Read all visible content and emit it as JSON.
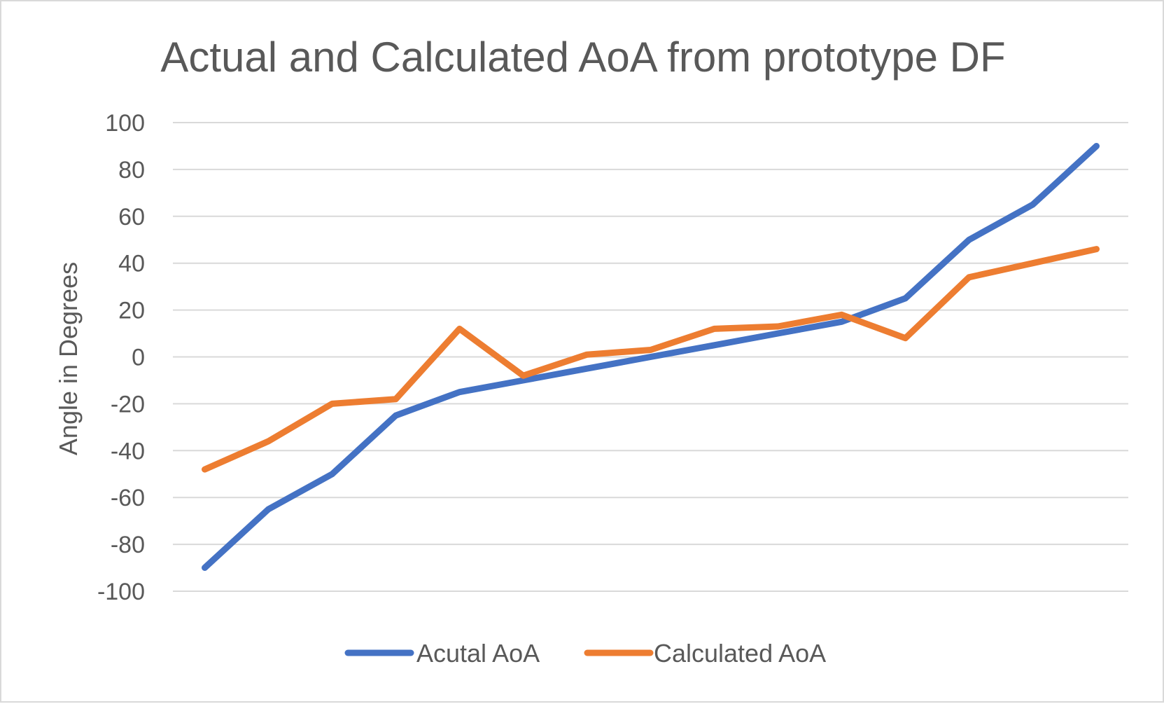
{
  "chart_data": {
    "type": "line",
    "title": "Actual and Calculated AoA from prototype DF",
    "xlabel": "",
    "ylabel": "Angle in Degrees",
    "ylim": [
      -100,
      100
    ],
    "y_ticks": [
      100,
      80,
      60,
      40,
      20,
      0,
      -20,
      -40,
      -60,
      -80,
      -100
    ],
    "grid": true,
    "legend_position": "bottom",
    "x": [
      1,
      2,
      3,
      4,
      5,
      6,
      7,
      8,
      9,
      10,
      11,
      12,
      13,
      14,
      15
    ],
    "series": [
      {
        "name": "Acutal AoA",
        "color": "#4472c4",
        "values": [
          -90,
          -65,
          -50,
          -25,
          -15,
          -10,
          -5,
          0,
          5,
          10,
          15,
          25,
          50,
          65,
          90
        ]
      },
      {
        "name": "Calculated AoA",
        "color": "#ed7d31",
        "values": [
          -48,
          -36,
          -20,
          -18,
          12,
          -8,
          1,
          3,
          12,
          13,
          18,
          8,
          34,
          40,
          46
        ]
      }
    ]
  },
  "colors": {
    "gridline": "#d9d9d9",
    "text": "#595959",
    "border": "#d9d9d9"
  }
}
